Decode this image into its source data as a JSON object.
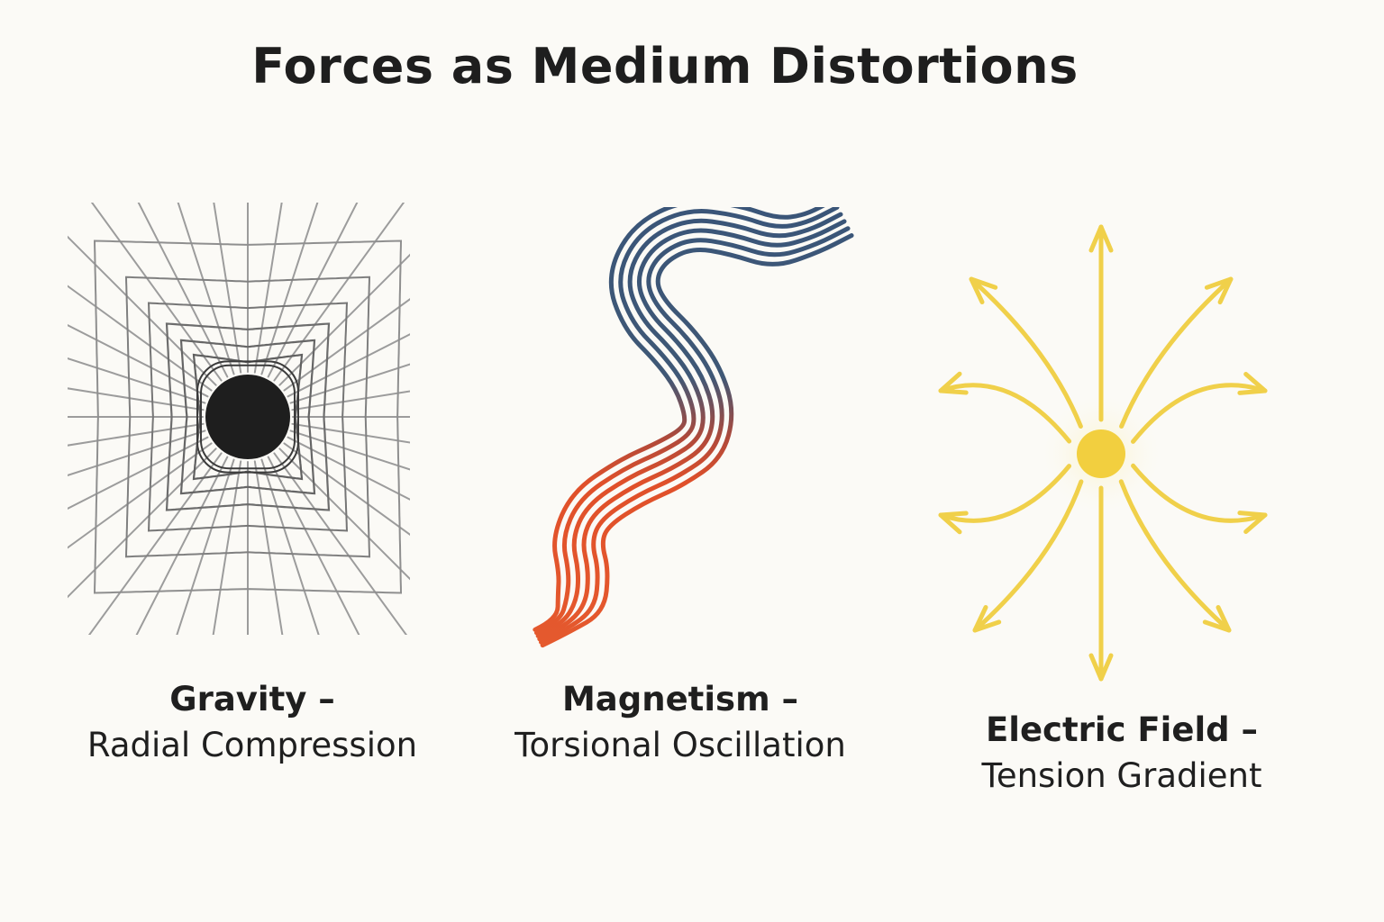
{
  "title": "Forces as Medium Distortions",
  "panels": [
    {
      "name": "Gravity –",
      "description": "Radial Compression",
      "icon": "black-hole-grid-icon",
      "colors": {
        "mass": "#1e1e1e",
        "grid": "#9a9a9a"
      }
    },
    {
      "name": "Magnetism –",
      "description": "Torsional Oscillation",
      "icon": "twisted-ribbon-icon",
      "colors": {
        "top": "#3a5578",
        "bottom": "#e0502a"
      }
    },
    {
      "name": "Electric Field –",
      "description": "Tension Gradient",
      "icon": "radiating-arrows-icon",
      "colors": {
        "charge": "#f2cf3f",
        "arrows": "#f0d04a"
      }
    }
  ]
}
